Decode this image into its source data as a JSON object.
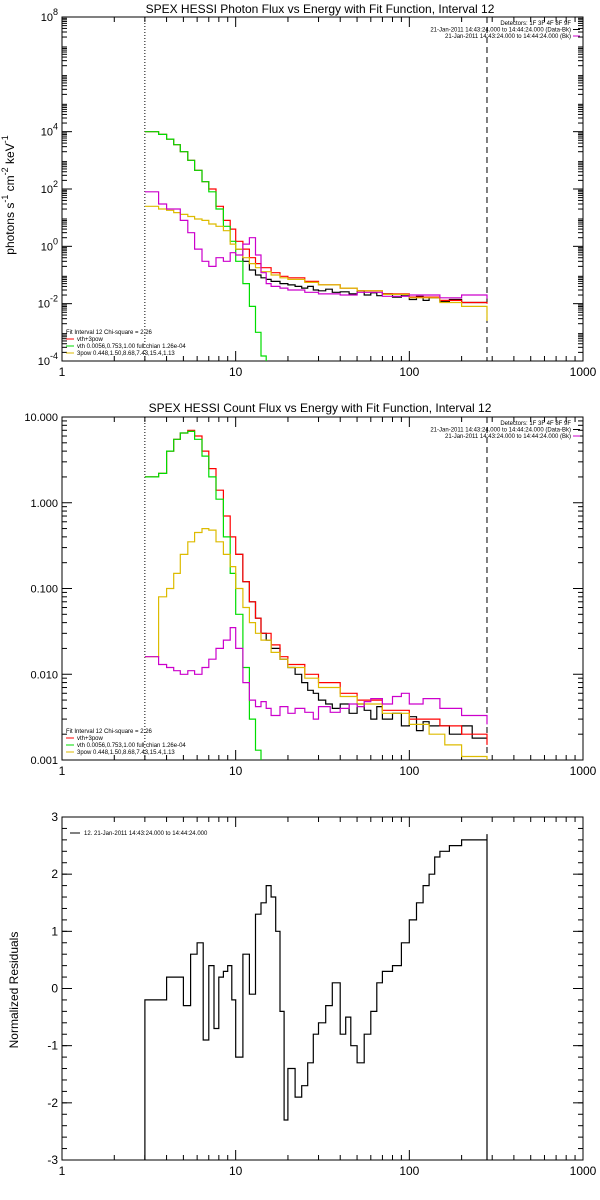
{
  "chart_data": [
    {
      "type": "line",
      "title": "SPEX HESSI Photon Flux vs Energy with Fit Function, Interval 12",
      "ylabel_parts": [
        "photons s",
        "-1",
        " cm",
        "-2",
        " keV",
        "-1"
      ],
      "xscale": "log",
      "yscale": "log",
      "xlim": [
        1,
        1000
      ],
      "ylim": [
        0.0001,
        100000000
      ],
      "xticks": [
        {
          "v": 1,
          "label": "1"
        },
        {
          "v": 10,
          "label": "10"
        },
        {
          "v": 100,
          "label": "100"
        },
        {
          "v": 1000,
          "label": "1000"
        }
      ],
      "yticks": [
        {
          "v": 0.0001,
          "b": "10",
          "e": "-4"
        },
        {
          "v": 0.01,
          "b": "10",
          "e": "-2"
        },
        {
          "v": 1,
          "b": "10",
          "e": "0"
        },
        {
          "v": 100,
          "b": "10",
          "e": "2"
        },
        {
          "v": 10000,
          "b": "10",
          "e": "4"
        },
        {
          "v": 100000000,
          "b": "10",
          "e": "8"
        }
      ],
      "vlines": [
        {
          "x": 3,
          "style": "dotted"
        },
        {
          "x": 280,
          "style": "dashed"
        }
      ],
      "legend_top_right": [
        {
          "text": "Detectors: 1F 3F 4F 8F 9F",
          "color": "#000000",
          "swatch": false
        },
        {
          "text": "21-Jan-2011 14:43:24.000 to 14:44:24.000 (Data-Bk)",
          "color": "#000000",
          "swatch": true
        },
        {
          "text": "21-Jan-2011 14:43:24.000 to 14:44:24.000 (Bk)",
          "color": "#cc00cc",
          "swatch": true
        }
      ],
      "legend_bottom_left": [
        {
          "text": "Fit Interval 12   Chi-square = 2.26",
          "color": "#000000",
          "swatch": false
        },
        {
          "text": "vth+3pow",
          "color": "#ff0000",
          "swatch": true
        },
        {
          "text": "vth 0.0056,0.753,1.00  full chian 1.26e-04",
          "color": "#00dd00",
          "swatch": true
        },
        {
          "text": "3pow 0.448,1.50,8.68,7.43,15.4,1.13",
          "color": "#ddbb00",
          "swatch": true
        }
      ],
      "series": [
        {
          "color": "#000000",
          "x": [
            10,
            11,
            12,
            13,
            14,
            15,
            16,
            18,
            20,
            22,
            24,
            26,
            28,
            30,
            33,
            36,
            40,
            45,
            50,
            55,
            60,
            65,
            70,
            80,
            90,
            100,
            110,
            120,
            130,
            150,
            170,
            200,
            230,
            280
          ],
          "y": [
            0.8,
            0.3,
            0.15,
            0.1,
            0.08,
            0.07,
            0.06,
            0.05,
            0.045,
            0.04,
            0.035,
            0.04,
            0.03,
            0.028,
            0.032,
            0.025,
            0.026,
            0.022,
            0.028,
            0.02,
            0.024,
            0.019,
            0.022,
            0.017,
            0.02,
            0.014,
            0.018,
            0.013,
            0.016,
            0.012,
            0.014,
            0.011,
            0.011,
            0.011
          ]
        },
        {
          "color": "#ff0000",
          "x": [
            3,
            3.3,
            3.6,
            4,
            4.4,
            4.8,
            5.3,
            5.8,
            6.4,
            7,
            7.7,
            8.5,
            9.3,
            10,
            11,
            12,
            13,
            14,
            16,
            18,
            20,
            25,
            30,
            40,
            50,
            70,
            100,
            150,
            200,
            280
          ],
          "y": [
            10000,
            10000,
            8000,
            5500,
            3500,
            2000,
            1000,
            450,
            180,
            100,
            25,
            8,
            4,
            1.5,
            0.8,
            0.4,
            0.25,
            0.18,
            0.12,
            0.09,
            0.08,
            0.06,
            0.045,
            0.035,
            0.028,
            0.022,
            0.017,
            0.013,
            0.011,
            0.01
          ]
        },
        {
          "color": "#00dd00",
          "x": [
            3,
            3.3,
            3.6,
            4,
            4.4,
            4.8,
            5.3,
            5.8,
            6.4,
            7,
            7.7,
            8.5,
            9.3,
            10,
            11,
            12,
            13,
            14,
            15
          ],
          "y": [
            10000,
            10000,
            8000,
            5500,
            3500,
            2000,
            1000,
            450,
            180,
            80,
            20,
            5,
            1.5,
            0.3,
            0.05,
            0.008,
            0.001,
            0.00015,
            0.0001
          ]
        },
        {
          "color": "#ddbb00",
          "x": [
            3,
            3.3,
            3.6,
            4,
            4.4,
            4.8,
            5.3,
            5.8,
            6.4,
            7,
            7.7,
            8.5,
            9.3,
            10,
            11,
            12,
            13,
            14,
            16,
            18,
            20,
            25,
            30,
            40,
            50,
            70,
            100,
            150,
            200,
            280
          ],
          "y": [
            25,
            25,
            20,
            18,
            15,
            13,
            11,
            9,
            8,
            6,
            5,
            3.5,
            1.2,
            0.8,
            0.4,
            0.25,
            0.18,
            0.13,
            0.1,
            0.08,
            0.07,
            0.055,
            0.045,
            0.035,
            0.028,
            0.021,
            0.016,
            0.011,
            0.008,
            0.0025
          ]
        },
        {
          "color": "#cc00cc",
          "x": [
            3,
            3.3,
            3.6,
            4,
            4.4,
            4.8,
            5.3,
            5.8,
            6.4,
            7,
            7.7,
            8.5,
            9.3,
            10,
            11,
            12,
            13,
            14,
            15,
            16,
            18,
            20,
            25,
            30,
            40,
            50,
            70,
            100,
            150,
            200,
            280
          ],
          "y": [
            80,
            80,
            30,
            20,
            20,
            8,
            3,
            0.8,
            0.3,
            0.2,
            0.4,
            0.3,
            0.6,
            0.5,
            1.2,
            2,
            0.5,
            0.12,
            0.05,
            0.04,
            0.035,
            0.03,
            0.025,
            0.022,
            0.02,
            0.025,
            0.018,
            0.02,
            0.016,
            0.02,
            0.015
          ]
        }
      ]
    },
    {
      "type": "line",
      "title": "SPEX HESSI Count Flux vs Energy with Fit Function, Interval 12",
      "xscale": "log",
      "yscale": "log",
      "xlim": [
        1,
        1000
      ],
      "ylim": [
        0.001,
        10
      ],
      "xticks": [
        {
          "v": 1,
          "label": "1"
        },
        {
          "v": 10,
          "label": "10"
        },
        {
          "v": 100,
          "label": "100"
        },
        {
          "v": 1000,
          "label": "1000"
        }
      ],
      "yticks": [
        {
          "v": 0.001,
          "label": "0.001"
        },
        {
          "v": 0.01,
          "label": "0.010"
        },
        {
          "v": 0.1,
          "label": "0.100"
        },
        {
          "v": 1,
          "label": "1.000"
        },
        {
          "v": 10,
          "label": "10.000"
        }
      ],
      "vlines": [
        {
          "x": 3,
          "style": "dotted"
        },
        {
          "x": 280,
          "style": "dashed"
        }
      ],
      "legend_top_right": [
        {
          "text": "Detectors: 1F 3F 4F 8F 9F",
          "color": "#000000",
          "swatch": false
        },
        {
          "text": "21-Jan-2011 14:43:24.000 to 14:44:24.000 (Data-Bk)",
          "color": "#000000",
          "swatch": true
        },
        {
          "text": "21-Jan-2011 14:43:24.000 to 14:44:24.000 (Bk)",
          "color": "#cc00cc",
          "swatch": true
        }
      ],
      "legend_bottom_left": [
        {
          "text": "Fit Interval 12   Chi-square = 2.26",
          "color": "#000000",
          "swatch": false
        },
        {
          "text": "vth+3pow",
          "color": "#ff0000",
          "swatch": true
        },
        {
          "text": "vth 0.0056,0.753,1.00  full chian 1.26e-04",
          "color": "#00dd00",
          "swatch": true
        },
        {
          "text": "3pow 0.448,1.50,8.68,7.43,15.4,1.13",
          "color": "#ddbb00",
          "swatch": true
        }
      ],
      "series": [
        {
          "color": "#000000",
          "x": [
            10,
            11,
            12,
            13,
            14,
            15,
            16,
            18,
            20,
            22,
            24,
            26,
            28,
            30,
            33,
            36,
            40,
            45,
            50,
            55,
            60,
            65,
            70,
            80,
            90,
            100,
            110,
            120,
            130,
            150,
            170,
            200,
            230,
            280
          ],
          "y": [
            0.25,
            0.12,
            0.07,
            0.045,
            0.03,
            0.025,
            0.02,
            0.015,
            0.012,
            0.01,
            0.008,
            0.0065,
            0.006,
            0.005,
            0.0045,
            0.004,
            0.0045,
            0.0035,
            0.0045,
            0.0038,
            0.003,
            0.0042,
            0.003,
            0.0035,
            0.0025,
            0.0032,
            0.0022,
            0.0028,
            0.0025,
            0.0025,
            0.002,
            0.0025,
            0.0018,
            0.0018
          ]
        },
        {
          "color": "#ff0000",
          "x": [
            3,
            3.3,
            3.6,
            4,
            4.4,
            4.8,
            5.3,
            5.8,
            6.4,
            7,
            7.7,
            8.5,
            9.3,
            10,
            11,
            12,
            13,
            14,
            16,
            18,
            20,
            25,
            30,
            40,
            50,
            70,
            100,
            150,
            200,
            280
          ],
          "y": [
            2,
            2,
            2.2,
            4,
            5.5,
            6.5,
            7,
            6,
            4,
            2.5,
            1.4,
            0.7,
            0.4,
            0.25,
            0.12,
            0.07,
            0.045,
            0.03,
            0.022,
            0.016,
            0.013,
            0.01,
            0.008,
            0.006,
            0.005,
            0.0038,
            0.003,
            0.0025,
            0.002,
            0.0015
          ]
        },
        {
          "color": "#00dd00",
          "x": [
            3,
            3.3,
            3.6,
            4,
            4.4,
            4.8,
            5.3,
            5.8,
            6.4,
            7,
            7.7,
            8.5,
            9.3,
            10,
            11,
            12,
            13,
            14
          ],
          "y": [
            2,
            2,
            2.2,
            4,
            5.5,
            6.5,
            6.8,
            5.5,
            3.5,
            2,
            1.1,
            0.4,
            0.15,
            0.05,
            0.012,
            0.003,
            0.0013,
            0.001
          ]
        },
        {
          "color": "#ddbb00",
          "x": [
            3,
            3.3,
            3.6,
            4,
            4.4,
            4.8,
            5.3,
            5.8,
            6.4,
            7,
            7.7,
            8.5,
            9.3,
            10,
            11,
            12,
            13,
            14,
            16,
            18,
            20,
            25,
            30,
            40,
            50,
            70,
            100,
            130,
            160,
            200,
            280
          ],
          "y": [
            0.016,
            0.016,
            0.08,
            0.1,
            0.15,
            0.25,
            0.35,
            0.45,
            0.5,
            0.48,
            0.35,
            0.25,
            0.18,
            0.1,
            0.06,
            0.04,
            0.03,
            0.025,
            0.018,
            0.015,
            0.012,
            0.009,
            0.007,
            0.0055,
            0.0045,
            0.0035,
            0.0026,
            0.002,
            0.0015,
            0.0011,
            0.0008
          ]
        },
        {
          "color": "#cc00cc",
          "x": [
            3,
            3.3,
            3.6,
            4,
            4.4,
            4.8,
            5.3,
            5.8,
            6.4,
            7,
            7.7,
            8.5,
            9.3,
            10,
            11,
            12,
            13,
            14,
            15,
            16,
            18,
            20,
            22,
            25,
            28,
            30,
            35,
            40,
            45,
            50,
            55,
            60,
            70,
            80,
            90,
            100,
            120,
            150,
            200,
            280
          ],
          "y": [
            0.016,
            0.016,
            0.013,
            0.012,
            0.011,
            0.01,
            0.011,
            0.01,
            0.012,
            0.015,
            0.02,
            0.025,
            0.035,
            0.02,
            0.008,
            0.005,
            0.0042,
            0.0048,
            0.004,
            0.0033,
            0.0042,
            0.0035,
            0.004,
            0.0036,
            0.003,
            0.0042,
            0.0036,
            0.004,
            0.0045,
            0.0042,
            0.0048,
            0.0052,
            0.0045,
            0.0055,
            0.006,
            0.0045,
            0.0052,
            0.004,
            0.0033,
            0.0026
          ]
        }
      ]
    },
    {
      "type": "line",
      "ylabel": "Normalized Residuals",
      "xscale": "log",
      "yscale": "linear",
      "xlim": [
        1,
        1000
      ],
      "ylim": [
        -3,
        3
      ],
      "xticks": [
        {
          "v": 1,
          "label": "1"
        },
        {
          "v": 10,
          "label": "10"
        },
        {
          "v": 100,
          "label": "100"
        },
        {
          "v": 1000,
          "label": "1000"
        }
      ],
      "yticks": [
        {
          "v": -3,
          "label": "-3"
        },
        {
          "v": -2,
          "label": "-2"
        },
        {
          "v": -1,
          "label": "-1"
        },
        {
          "v": 0,
          "label": "0"
        },
        {
          "v": 1,
          "label": "1"
        },
        {
          "v": 2,
          "label": "2"
        },
        {
          "v": 3,
          "label": "3"
        }
      ],
      "legend_top_left": [
        {
          "text": "12. 21-Jan-2011 14:43:24.000 to 14:44:24.000",
          "color": "#000000",
          "swatch": true
        }
      ],
      "series": [
        {
          "color": "#000000",
          "step": true,
          "x": [
            3,
            4,
            4.5,
            5,
            5.5,
            6,
            6.5,
            7,
            7.5,
            8,
            8.5,
            9,
            9.5,
            10,
            11,
            12,
            13,
            14,
            15,
            16,
            17,
            18,
            19,
            20,
            22,
            24,
            26,
            28,
            30,
            33,
            36,
            40,
            43,
            46,
            50,
            55,
            60,
            65,
            70,
            80,
            90,
            100,
            110,
            120,
            130,
            140,
            150,
            170,
            200,
            230,
            280
          ],
          "y": [
            -0.2,
            0.2,
            0.2,
            -0.3,
            0.6,
            0.8,
            -0.9,
            0.4,
            -0.7,
            0.2,
            0.3,
            0.4,
            -0.2,
            -1.2,
            0.6,
            -0.1,
            1.3,
            1.5,
            1.8,
            1.6,
            1.0,
            -0.4,
            -2.3,
            -1.4,
            -1.9,
            -1.7,
            -1.3,
            -0.8,
            -0.6,
            -0.3,
            0.1,
            -0.8,
            -0.5,
            -1.0,
            -1.3,
            -0.8,
            -0.4,
            0.1,
            0.3,
            0.4,
            0.8,
            1.2,
            1.5,
            1.8,
            2.0,
            2.3,
            2.4,
            2.5,
            2.6,
            2.6,
            2.7
          ]
        }
      ]
    }
  ]
}
